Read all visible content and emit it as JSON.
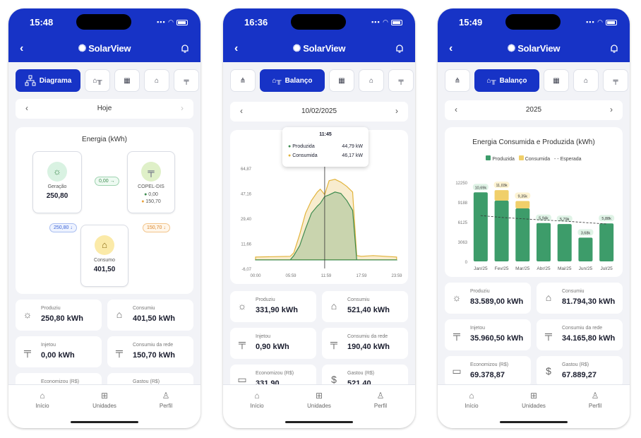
{
  "app": {
    "name": "SolarView"
  },
  "nav": [
    {
      "label": "Início"
    },
    {
      "label": "Unidades"
    },
    {
      "label": "Perfil"
    }
  ],
  "s1": {
    "time": "15:48",
    "tab_label": "Diagrama",
    "date": "Hoje",
    "chart_title": "Energia (kWh)",
    "nodes": {
      "geracao": {
        "label": "Geração",
        "value": "250,80"
      },
      "copel": {
        "label": "COPEL-DIS",
        "in": "0,00",
        "out": "150,70"
      },
      "consumo": {
        "label": "Consumo",
        "value": "401,50"
      }
    },
    "flows": {
      "ger_to_copel": "0,00 →",
      "ger_to_cons": "250,80 ↓",
      "copel_to_cons": "150,70 ↓"
    },
    "stats": [
      {
        "label": "Produziu",
        "value": "250,80 kWh"
      },
      {
        "label": "Consumiu",
        "value": "401,50 kWh"
      },
      {
        "label": "Injetou",
        "value": "0,00 kWh"
      },
      {
        "label": "Consumiu da rede",
        "value": "150,70 kWh"
      },
      {
        "label": "Economizou (R$)",
        "value": ""
      },
      {
        "label": "Gastou (R$)",
        "value": ""
      }
    ]
  },
  "s2": {
    "time": "16:36",
    "tab_label": "Balanço",
    "date": "10/02/2025",
    "chart_title": "Energia (kWh)",
    "tooltip": {
      "time": "11:45",
      "rows": [
        {
          "label": "Produzida",
          "value": "44,79 kW"
        },
        {
          "label": "Consumida",
          "value": "46,17 kW"
        }
      ]
    },
    "stats": [
      {
        "label": "Produziu",
        "value": "331,90 kWh"
      },
      {
        "label": "Consumiu",
        "value": "521,40 kWh"
      },
      {
        "label": "Injetou",
        "value": "0,90 kWh"
      },
      {
        "label": "Consumiu da rede",
        "value": "190,40 kWh"
      },
      {
        "label": "Economizou (R$)",
        "value": "331,90"
      },
      {
        "label": "Gastou (R$)",
        "value": "521,40"
      }
    ]
  },
  "s3": {
    "time": "15:49",
    "tab_label": "Balanço",
    "date": "2025",
    "chart_title": "Energia Consumida e Produzida (kWh)",
    "legend": [
      "Produzida",
      "Consumida",
      "Esperada"
    ],
    "stats": [
      {
        "label": "Produziu",
        "value": "83.589,00 kWh"
      },
      {
        "label": "Consumiu",
        "value": "81.794,30 kWh"
      },
      {
        "label": "Injetou",
        "value": "35.960,50 kWh"
      },
      {
        "label": "Consumiu da rede",
        "value": "34.165,80 kWh"
      },
      {
        "label": "Economizou (R$)",
        "value": "69.378,87"
      },
      {
        "label": "Gastou (R$)",
        "value": "67.889,27"
      }
    ]
  },
  "chart_data": [
    {
      "type": "area",
      "title": "",
      "x_ticks": [
        "00:00",
        "05:59",
        "11:59",
        "17:59",
        "23:59"
      ],
      "y_ticks": [
        "64,87",
        "47,16",
        "29,40",
        "11,66",
        "-6,07"
      ],
      "ylim": [
        -6.07,
        64.87
      ],
      "series": [
        {
          "name": "Produzida",
          "color": "#3d8b4f",
          "x": [
            0,
            5.9,
            6.5,
            7.5,
            8.5,
            9.5,
            10.5,
            11,
            11.75,
            12.5,
            13.5,
            14.5,
            15.5,
            16.5,
            17.2,
            18,
            20,
            23.98
          ],
          "y": [
            0,
            0,
            3,
            10,
            22,
            33,
            38,
            40,
            44.79,
            46,
            48,
            47,
            42,
            35,
            0,
            0,
            0,
            0
          ]
        },
        {
          "name": "Consumida",
          "color": "#e2b43c",
          "x": [
            0,
            5.9,
            6.5,
            7.5,
            8.5,
            9.5,
            10.5,
            11,
            11.75,
            12.5,
            13.5,
            14.5,
            15.5,
            16.5,
            17.2,
            18,
            20,
            23.98
          ],
          "y": [
            2,
            2.5,
            5,
            18,
            33,
            42,
            48,
            50,
            46.17,
            56,
            57,
            55,
            52,
            48,
            3,
            2.5,
            3,
            2
          ]
        }
      ]
    },
    {
      "type": "bar",
      "title": "Energia Consumida e Produzida (kWh)",
      "categories": [
        "Jan/25",
        "Fev/25",
        "Mar/25",
        "Abr/25",
        "Mai/25",
        "Jun/25",
        "Jul/25"
      ],
      "y_ticks": [
        "12250",
        "9188",
        "6125",
        "3063",
        "0"
      ],
      "ylim": [
        0,
        12250
      ],
      "series": [
        {
          "name": "Produzida",
          "color": "#3d9c6a",
          "values": [
            10690,
            9400,
            8200,
            5940,
            5790,
            3680,
            5880
          ]
        },
        {
          "name": "Consumida",
          "color": "#f0cf6a",
          "values": [
            10690,
            11030,
            9350,
            5940,
            5790,
            3680,
            5880
          ]
        },
        {
          "name": "Esperada",
          "color": "#333333",
          "values": [
            7100,
            6800,
            6600,
            6400,
            6250,
            6000,
            5800
          ]
        }
      ],
      "labels": [
        "10,69k",
        "11,03k",
        "9,35k",
        "5,94k",
        "5,79k",
        "3,68k",
        "5,88k"
      ]
    }
  ]
}
